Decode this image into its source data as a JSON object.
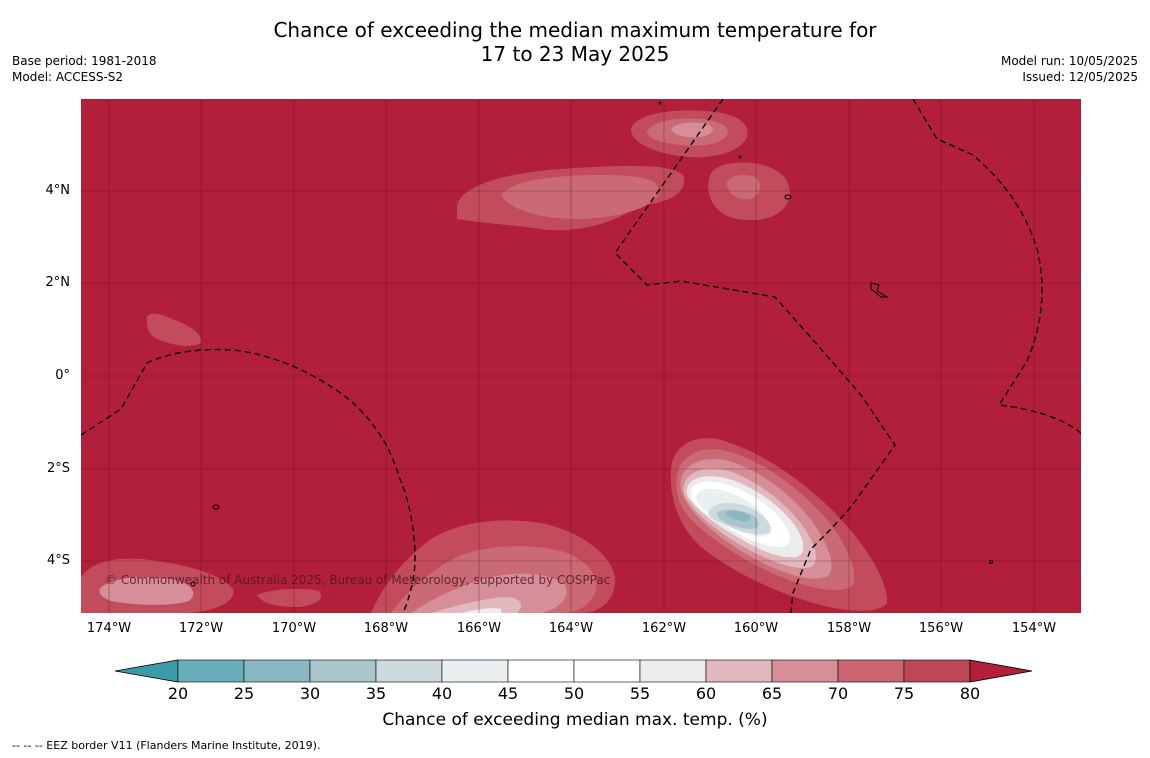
{
  "header": {
    "title_line1": "Chance of exceeding the median maximum temperature for",
    "title_line2": "17 to 23 May 2025",
    "base_period": "Base period: 1981-2018",
    "model": "Model: ACCESS-S2",
    "model_run": "Model run: 10/05/2025",
    "issued": "Issued: 12/05/2025"
  },
  "map": {
    "lat_labels": [
      "4°N",
      "2°N",
      "0°",
      "2°S",
      "4°S"
    ],
    "lon_labels": [
      "174°W",
      "172°W",
      "170°W",
      "168°W",
      "166°W",
      "164°W",
      "162°W",
      "160°W",
      "158°W",
      "156°W",
      "154°W"
    ],
    "copyright": "© Commonwealth of Australia 2025, Bureau of Meteorology, supported by COSPPac",
    "background_color": "#b11f3a"
  },
  "colorbar": {
    "ticks": [
      "20",
      "25",
      "30",
      "35",
      "40",
      "45",
      "50",
      "55",
      "60",
      "65",
      "70",
      "75",
      "80"
    ],
    "colors": [
      "#3b9aa8",
      "#6aaebc",
      "#8ab8c2",
      "#aac6cc",
      "#ccdadd",
      "#eaf0f1",
      "#ffffff",
      "#ffffff",
      "#ececec",
      "#e0b8be",
      "#d68e99",
      "#c96672",
      "#bd4756",
      "#b11f3a"
    ],
    "title": "Chance of exceeding median max. temp. (%)"
  },
  "footer": {
    "legend_text": "--  --  -- EEZ border V11 (Flanders Marine Institute, 2019)."
  }
}
